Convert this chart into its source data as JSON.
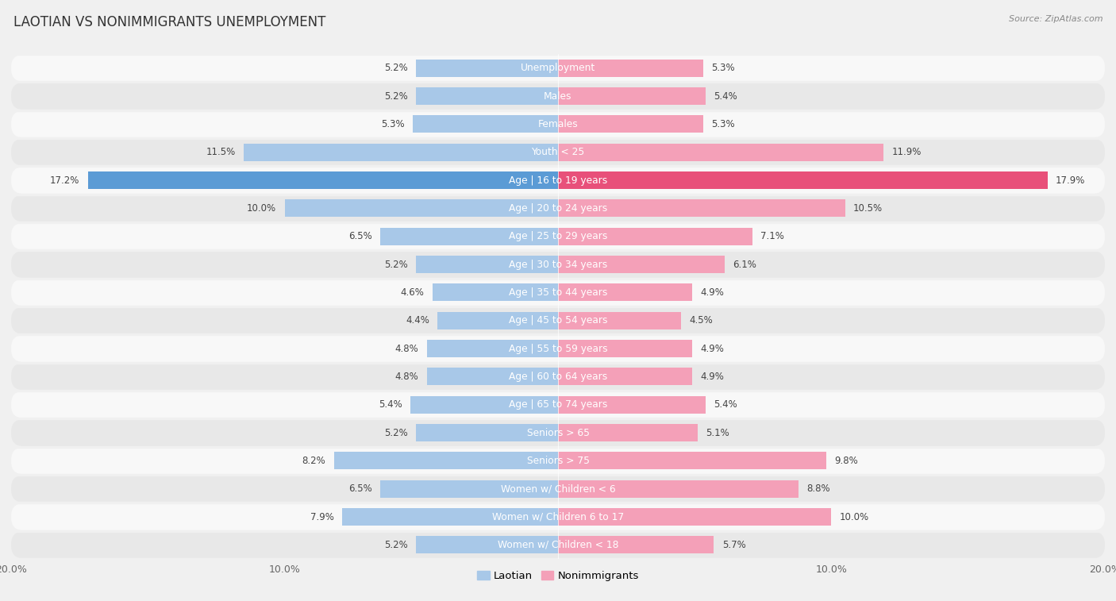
{
  "title": "LAOTIAN VS NONIMMIGRANTS UNEMPLOYMENT",
  "source": "Source: ZipAtlas.com",
  "categories": [
    "Unemployment",
    "Males",
    "Females",
    "Youth < 25",
    "Age | 16 to 19 years",
    "Age | 20 to 24 years",
    "Age | 25 to 29 years",
    "Age | 30 to 34 years",
    "Age | 35 to 44 years",
    "Age | 45 to 54 years",
    "Age | 55 to 59 years",
    "Age | 60 to 64 years",
    "Age | 65 to 74 years",
    "Seniors > 65",
    "Seniors > 75",
    "Women w/ Children < 6",
    "Women w/ Children 6 to 17",
    "Women w/ Children < 18"
  ],
  "laotian": [
    5.2,
    5.2,
    5.3,
    11.5,
    17.2,
    10.0,
    6.5,
    5.2,
    4.6,
    4.4,
    4.8,
    4.8,
    5.4,
    5.2,
    8.2,
    6.5,
    7.9,
    5.2
  ],
  "nonimmigrants": [
    5.3,
    5.4,
    5.3,
    11.9,
    17.9,
    10.5,
    7.1,
    6.1,
    4.9,
    4.5,
    4.9,
    4.9,
    5.4,
    5.1,
    9.8,
    8.8,
    10.0,
    5.7
  ],
  "laotian_color": "#a8c8e8",
  "nonimmigrant_color": "#f4a0b8",
  "highlight_laotian_color": "#5b9bd5",
  "highlight_nonimmigrant_color": "#e8507a",
  "bar_height": 0.62,
  "max_val": 20.0,
  "background_color": "#f0f0f0",
  "row_light_color": "#f8f8f8",
  "row_dark_color": "#e8e8e8",
  "label_color": "#555555",
  "value_color": "#444444",
  "center_label_color": "#444444",
  "axis_tick_color": "#666666"
}
